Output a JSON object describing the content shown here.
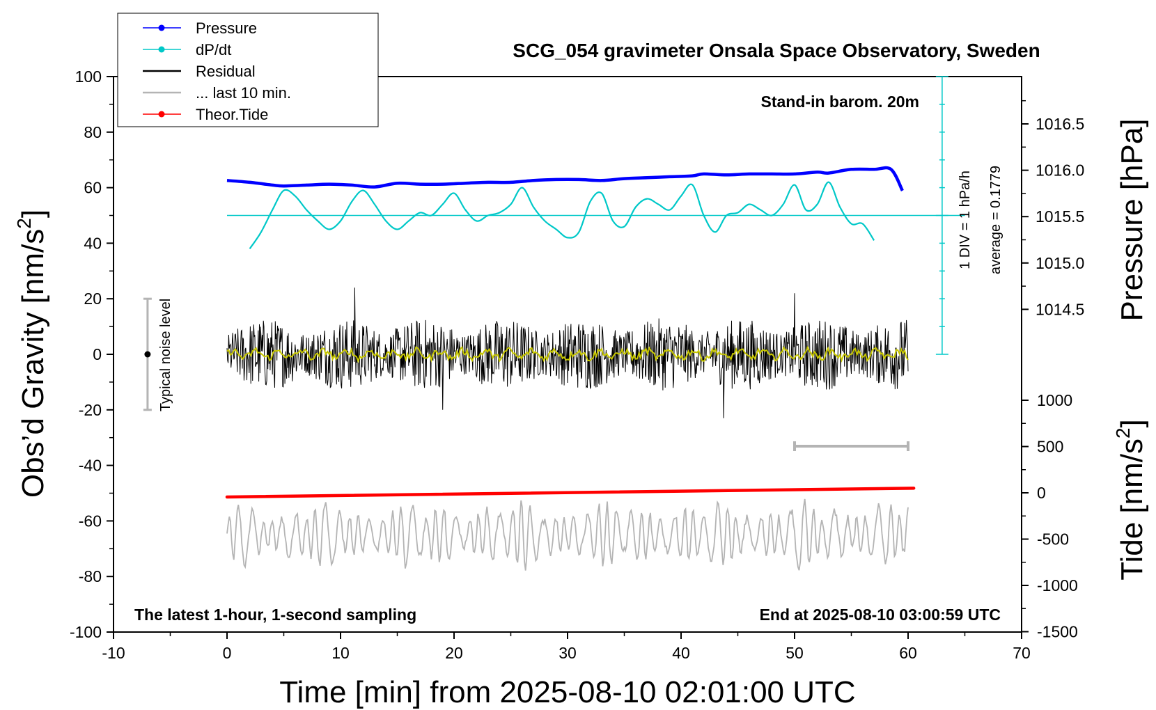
{
  "chart_data": {
    "type": "line",
    "title": "SCG_054 gravimeter Onsala Space Observatory, Sweden",
    "xlabel": "Time [min] from 2025-08-10 02:01:00 UTC",
    "ylabel_left": "Obs’d Gravity [nm/s",
    "ylabel_left_sup": "2",
    "ylabel_left_tail": "]",
    "ylabel_right_top": "Pressure [hPa]",
    "ylabel_right_bottom": "Tide [nm/s",
    "ylabel_right_bottom_sup": "2",
    "ylabel_right_bottom_tail": "]",
    "xlim": [
      -10,
      70
    ],
    "ylim_left": [
      -100,
      100
    ],
    "xticks": [
      "-10",
      "0",
      "10",
      "20",
      "30",
      "40",
      "50",
      "60",
      "70"
    ],
    "yticks_left": [
      "100",
      "80",
      "60",
      "40",
      "20",
      "0",
      "-20",
      "-40",
      "-60",
      "-80",
      "-100"
    ],
    "pressure_ticks": [
      "1016.5",
      "1016.0",
      "1015.5",
      "1015.0",
      "1014.5"
    ],
    "tide_ticks": [
      "1000",
      "500",
      "0",
      "-500",
      "-1000",
      "-1500"
    ],
    "annotations": {
      "barometer": "Stand-in barom. 20m",
      "sampling": "The latest 1-hour, 1-second sampling",
      "end_time": "End at 2025-08-10 03:00:59 UTC",
      "dpdt_scale": "1 DIV = 1 hPa/h",
      "dpdt_average": "average = 0.1779",
      "noise": "Typical noise level"
    },
    "legend": {
      "position": "top-left",
      "entries": [
        {
          "label": "Pressure",
          "color": "#0000ff",
          "marker": true
        },
        {
          "label": "dP/dt",
          "color": "#00c8c8",
          "marker": true
        },
        {
          "label": "Residual",
          "color": "#000000",
          "marker": false
        },
        {
          "label": "... last 10 min.",
          "color": "#b4b4b4",
          "marker": false
        },
        {
          "label": "Theor.Tide",
          "color": "#ff0000",
          "marker": true
        }
      ]
    },
    "series": [
      {
        "name": "Pressure",
        "unit": "hPa",
        "x": [
          0,
          2,
          4,
          5,
          7,
          9,
          11,
          13,
          15,
          17,
          19,
          21,
          23,
          25,
          27,
          29,
          31,
          33,
          35,
          37,
          39,
          41,
          42,
          44,
          46,
          48,
          50,
          52,
          53,
          55,
          57,
          58.5,
          59.5
        ],
        "values": [
          1015.89,
          1015.87,
          1015.84,
          1015.83,
          1015.84,
          1015.85,
          1015.84,
          1015.82,
          1015.86,
          1015.85,
          1015.85,
          1015.86,
          1015.87,
          1015.87,
          1015.89,
          1015.9,
          1015.9,
          1015.89,
          1015.91,
          1015.92,
          1015.93,
          1015.94,
          1015.96,
          1015.95,
          1015.96,
          1015.96,
          1015.96,
          1015.98,
          1015.97,
          1016.01,
          1016.01,
          1016.01,
          1015.78
        ]
      },
      {
        "name": "dP/dt",
        "unit": "nm/s2 on left axis (1 DIV = 1 hPa/h)",
        "x": [
          2,
          3,
          4,
          5,
          6,
          7,
          8,
          9,
          10,
          11,
          12,
          13,
          14,
          15,
          16,
          17,
          18,
          19,
          20,
          21,
          22,
          23,
          24,
          25,
          26,
          27,
          28,
          29,
          30,
          31,
          32,
          33,
          34,
          35,
          36,
          37,
          38,
          39,
          40,
          41,
          42,
          43,
          44,
          45,
          46,
          47,
          48,
          49,
          50,
          51,
          52,
          53,
          54,
          55,
          56,
          57
        ],
        "values": [
          38,
          44,
          52,
          59,
          57,
          52,
          48,
          45,
          48,
          55,
          59,
          54,
          48,
          45,
          48,
          51,
          50,
          54,
          58,
          52,
          48,
          50,
          51,
          54,
          60,
          53,
          48,
          45,
          42,
          44,
          55,
          58,
          48,
          46,
          53,
          56,
          54,
          52,
          57,
          61,
          50,
          44,
          50,
          51,
          54,
          52,
          50,
          54,
          61,
          52,
          54,
          62,
          53,
          47,
          47,
          41
        ]
      },
      {
        "name": "Residual",
        "unit": "nm/s2",
        "x_range": [
          0,
          60
        ],
        "amplitude": 13,
        "spikes": [
          24,
          -23,
          -20,
          22
        ]
      },
      {
        "name": "... last 10 min.",
        "unit": "nm/s2",
        "x_range": [
          0,
          60
        ],
        "center": -65
      },
      {
        "name": "Theor.Tide",
        "unit": "nm/s2",
        "x": [
          0,
          60.5
        ],
        "values": [
          -45,
          50
        ]
      }
    ],
    "noise_bar": {
      "x": -7,
      "ymin": -20,
      "ymax": 20
    },
    "ten_min_bar": {
      "xmin": 50,
      "xmax": 60
    }
  }
}
